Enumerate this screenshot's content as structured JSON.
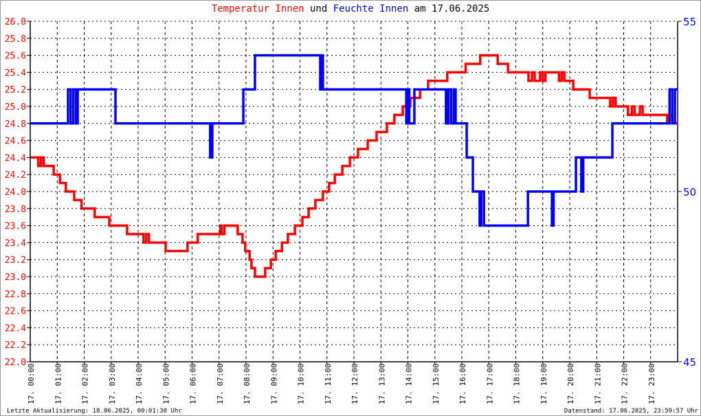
{
  "title": {
    "part1": "Temperatur Innen",
    "part2": "und",
    "part3": "Feuchte Innen",
    "part4": "am 17.06.2025"
  },
  "footer": {
    "left": "Letzte Aktualisierung: 18.06.2025, 00:01:30 Uhr",
    "right": "Datenstand: 17.06.2025, 23:59:57 Uhr"
  },
  "chart_data": {
    "type": "line",
    "title": "Temperatur Innen und Feuchte Innen am 17.06.2025",
    "x_unit": "hour of day 17.06.2025",
    "xlim": [
      0,
      24
    ],
    "x_tick_labels": [
      "17. 00:00",
      "17. 01:00",
      "17. 02:00",
      "17. 03:00",
      "17. 04:00",
      "17. 05:00",
      "17. 06:00",
      "17. 07:00",
      "17. 08:00",
      "17. 09:00",
      "17. 10:00",
      "17. 11:00",
      "17. 12:00",
      "17. 13:00",
      "17. 14:00",
      "17. 15:00",
      "17. 16:00",
      "17. 17:00",
      "17. 18:00",
      "17. 19:00",
      "17. 20:00",
      "17. 21:00",
      "17. 22:00",
      "17. 23:00"
    ],
    "y_left": {
      "lim": [
        22.0,
        26.0
      ],
      "ticks": [
        "22.0",
        "22.2",
        "22.4",
        "22.6",
        "22.8",
        "23.0",
        "23.2",
        "23.4",
        "23.6",
        "23.8",
        "24.0",
        "24.2",
        "24.4",
        "24.6",
        "24.8",
        "25.0",
        "25.2",
        "25.4",
        "25.6",
        "25.8",
        "26.0"
      ],
      "color": "#ff0000"
    },
    "y_right": {
      "lim": [
        45,
        55
      ],
      "ticks": [
        "45",
        "50",
        "55"
      ],
      "color": "#0000ff"
    },
    "grid": true,
    "series": [
      {
        "name": "Temperatur Innen",
        "axis": "left",
        "color": "#ff0000",
        "step": true,
        "points": [
          [
            0,
            24.4
          ],
          [
            0.3,
            24.3
          ],
          [
            0.4,
            24.4
          ],
          [
            0.5,
            24.3
          ],
          [
            0.87,
            24.2
          ],
          [
            1.1,
            24.1
          ],
          [
            1.32,
            24.0
          ],
          [
            1.63,
            23.9
          ],
          [
            1.9,
            23.8
          ],
          [
            2.39,
            23.7
          ],
          [
            2.93,
            23.6
          ],
          [
            3.59,
            23.5
          ],
          [
            4.2,
            23.4
          ],
          [
            4.3,
            23.5
          ],
          [
            4.4,
            23.4
          ],
          [
            5.02,
            23.3
          ],
          [
            5.83,
            23.4
          ],
          [
            6.21,
            23.5
          ],
          [
            7.05,
            23.6
          ],
          [
            7.1,
            23.5
          ],
          [
            7.2,
            23.6
          ],
          [
            7.69,
            23.5
          ],
          [
            7.87,
            23.4
          ],
          [
            7.97,
            23.3
          ],
          [
            8.13,
            23.2
          ],
          [
            8.2,
            23.1
          ],
          [
            8.33,
            23.0
          ],
          [
            8.71,
            23.1
          ],
          [
            8.92,
            23.2
          ],
          [
            9.1,
            23.3
          ],
          [
            9.33,
            23.4
          ],
          [
            9.55,
            23.5
          ],
          [
            9.81,
            23.6
          ],
          [
            10.09,
            23.7
          ],
          [
            10.32,
            23.8
          ],
          [
            10.57,
            23.9
          ],
          [
            10.85,
            24.0
          ],
          [
            11.08,
            24.1
          ],
          [
            11.29,
            24.2
          ],
          [
            11.57,
            24.3
          ],
          [
            11.85,
            24.4
          ],
          [
            12.15,
            24.5
          ],
          [
            12.51,
            24.6
          ],
          [
            12.84,
            24.7
          ],
          [
            13.22,
            24.8
          ],
          [
            13.5,
            24.9
          ],
          [
            13.81,
            25.0
          ],
          [
            14.09,
            25.1
          ],
          [
            14.45,
            25.2
          ],
          [
            14.75,
            25.3
          ],
          [
            15.46,
            25.4
          ],
          [
            16.14,
            25.5
          ],
          [
            16.68,
            25.6
          ],
          [
            17.33,
            25.5
          ],
          [
            17.71,
            25.4
          ],
          [
            18.47,
            25.3
          ],
          [
            18.6,
            25.4
          ],
          [
            18.7,
            25.3
          ],
          [
            18.9,
            25.4
          ],
          [
            19.0,
            25.3
          ],
          [
            19.1,
            25.4
          ],
          [
            19.6,
            25.3
          ],
          [
            19.7,
            25.4
          ],
          [
            19.8,
            25.3
          ],
          [
            20.13,
            25.2
          ],
          [
            20.74,
            25.1
          ],
          [
            21.5,
            25.0
          ],
          [
            21.6,
            25.1
          ],
          [
            21.7,
            25.0
          ],
          [
            22.16,
            24.9
          ],
          [
            22.3,
            25.0
          ],
          [
            22.4,
            24.9
          ],
          [
            22.6,
            25.0
          ],
          [
            22.7,
            24.9
          ],
          [
            23.61,
            24.8
          ],
          [
            23.7,
            24.9
          ],
          [
            23.8,
            24.8
          ],
          [
            24,
            24.8
          ]
        ]
      },
      {
        "name": "Feuchte Innen",
        "axis": "right",
        "color": "#0000ff",
        "step": true,
        "points": [
          [
            0,
            52
          ],
          [
            1.4,
            53
          ],
          [
            1.5,
            52
          ],
          [
            1.6,
            53
          ],
          [
            1.7,
            52
          ],
          [
            1.76,
            53
          ],
          [
            3.16,
            52
          ],
          [
            6.67,
            51
          ],
          [
            6.75,
            52
          ],
          [
            7.9,
            53
          ],
          [
            8.33,
            54
          ],
          [
            10.75,
            53
          ],
          [
            10.8,
            54
          ],
          [
            10.85,
            53
          ],
          [
            13.94,
            52
          ],
          [
            14.0,
            53
          ],
          [
            14.05,
            52
          ],
          [
            14.24,
            53
          ],
          [
            15.41,
            52
          ],
          [
            15.5,
            53
          ],
          [
            15.6,
            52
          ],
          [
            15.7,
            53
          ],
          [
            15.77,
            52
          ],
          [
            16.18,
            51
          ],
          [
            16.41,
            50
          ],
          [
            16.66,
            49
          ],
          [
            16.72,
            50
          ],
          [
            16.82,
            49
          ],
          [
            18.45,
            50
          ],
          [
            19.34,
            49
          ],
          [
            19.4,
            50
          ],
          [
            20.23,
            51
          ],
          [
            20.43,
            50
          ],
          [
            20.5,
            51
          ],
          [
            21.58,
            52
          ],
          [
            23.7,
            53
          ],
          [
            23.8,
            52
          ],
          [
            23.9,
            53
          ],
          [
            24,
            53
          ]
        ]
      }
    ]
  }
}
